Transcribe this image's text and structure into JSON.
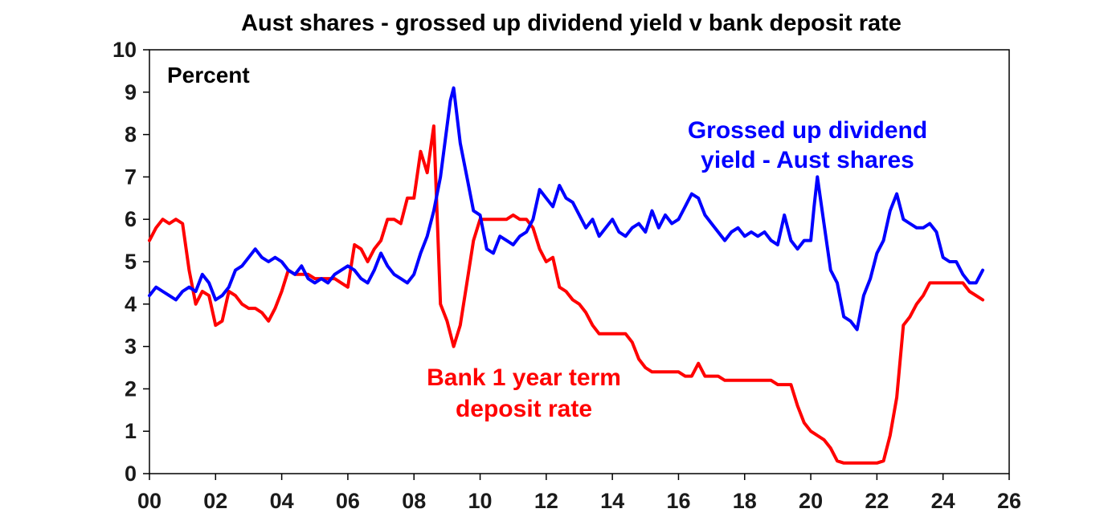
{
  "chart_data": {
    "type": "line",
    "title": "Aust shares - grossed up dividend yield v bank deposit rate",
    "unit_label": "Percent",
    "xlabel": "",
    "ylabel": "",
    "xlim": [
      0,
      26
    ],
    "ylim": [
      0,
      10
    ],
    "x_ticks": [
      0,
      2,
      4,
      6,
      8,
      10,
      12,
      14,
      16,
      18,
      20,
      22,
      24,
      26
    ],
    "x_tick_labels": [
      "00",
      "02",
      "04",
      "06",
      "08",
      "10",
      "12",
      "14",
      "16",
      "18",
      "20",
      "22",
      "24",
      "26"
    ],
    "y_ticks": [
      0,
      1,
      2,
      3,
      4,
      5,
      6,
      7,
      8,
      9,
      10
    ],
    "grid": false,
    "legend": "none",
    "series": [
      {
        "annotation_lines": [
          "Grossed up dividend",
          "yield - Aust shares"
        ],
        "color": "#0000ff",
        "x": [
          0.0,
          0.2,
          0.4,
          0.6,
          0.8,
          1.0,
          1.2,
          1.4,
          1.6,
          1.8,
          2.0,
          2.2,
          2.4,
          2.6,
          2.8,
          3.0,
          3.2,
          3.4,
          3.6,
          3.8,
          4.0,
          4.2,
          4.4,
          4.6,
          4.8,
          5.0,
          5.2,
          5.4,
          5.6,
          5.8,
          6.0,
          6.2,
          6.4,
          6.6,
          6.8,
          7.0,
          7.2,
          7.4,
          7.6,
          7.8,
          8.0,
          8.2,
          8.4,
          8.6,
          8.8,
          9.0,
          9.1,
          9.2,
          9.4,
          9.6,
          9.8,
          10.0,
          10.2,
          10.4,
          10.6,
          10.8,
          11.0,
          11.2,
          11.4,
          11.6,
          11.8,
          12.0,
          12.2,
          12.4,
          12.6,
          12.8,
          13.0,
          13.2,
          13.4,
          13.6,
          13.8,
          14.0,
          14.2,
          14.4,
          14.6,
          14.8,
          15.0,
          15.2,
          15.4,
          15.6,
          15.8,
          16.0,
          16.2,
          16.4,
          16.6,
          16.8,
          17.0,
          17.2,
          17.4,
          17.6,
          17.8,
          18.0,
          18.2,
          18.4,
          18.6,
          18.8,
          19.0,
          19.2,
          19.4,
          19.6,
          19.8,
          20.0,
          20.1,
          20.2,
          20.4,
          20.6,
          20.8,
          21.0,
          21.2,
          21.4,
          21.6,
          21.8,
          22.0,
          22.2,
          22.4,
          22.6,
          22.8,
          23.0,
          23.2,
          23.4,
          23.6,
          23.8,
          24.0,
          24.2,
          24.4,
          24.6,
          24.8,
          25.0,
          25.2
        ],
        "y": [
          4.2,
          4.4,
          4.3,
          4.2,
          4.1,
          4.3,
          4.4,
          4.3,
          4.7,
          4.5,
          4.1,
          4.2,
          4.4,
          4.8,
          4.9,
          5.1,
          5.3,
          5.1,
          5.0,
          5.1,
          5.0,
          4.8,
          4.7,
          4.9,
          4.6,
          4.5,
          4.6,
          4.5,
          4.7,
          4.8,
          4.9,
          4.8,
          4.6,
          4.5,
          4.8,
          5.2,
          4.9,
          4.7,
          4.6,
          4.5,
          4.7,
          5.2,
          5.6,
          6.2,
          7.0,
          8.2,
          8.8,
          9.1,
          7.8,
          7.0,
          6.2,
          6.1,
          5.3,
          5.2,
          5.6,
          5.5,
          5.4,
          5.6,
          5.7,
          6.0,
          6.7,
          6.5,
          6.3,
          6.8,
          6.5,
          6.4,
          6.1,
          5.8,
          6.0,
          5.6,
          5.8,
          6.0,
          5.7,
          5.6,
          5.8,
          5.9,
          5.7,
          6.2,
          5.8,
          6.1,
          5.9,
          6.0,
          6.3,
          6.6,
          6.5,
          6.1,
          5.9,
          5.7,
          5.5,
          5.7,
          5.8,
          5.6,
          5.7,
          5.6,
          5.7,
          5.5,
          5.4,
          6.1,
          5.5,
          5.3,
          5.5,
          5.5,
          6.3,
          7.0,
          5.9,
          4.8,
          4.5,
          3.7,
          3.6,
          3.4,
          4.2,
          4.6,
          5.2,
          5.5,
          6.2,
          6.6,
          6.0,
          5.9,
          5.8,
          5.8,
          5.9,
          5.7,
          5.1,
          5.0,
          5.0,
          4.7,
          4.5,
          4.5,
          4.8
        ]
      },
      {
        "annotation_lines": [
          "Bank 1 year term",
          "deposit rate"
        ],
        "color": "#ff0000",
        "x": [
          0.0,
          0.2,
          0.4,
          0.6,
          0.8,
          1.0,
          1.2,
          1.4,
          1.6,
          1.8,
          2.0,
          2.2,
          2.4,
          2.6,
          2.8,
          3.0,
          3.2,
          3.4,
          3.6,
          3.8,
          4.0,
          4.2,
          4.4,
          4.6,
          4.8,
          5.0,
          5.2,
          5.4,
          5.6,
          5.8,
          6.0,
          6.2,
          6.4,
          6.6,
          6.8,
          7.0,
          7.2,
          7.4,
          7.6,
          7.8,
          8.0,
          8.2,
          8.4,
          8.6,
          8.8,
          9.0,
          9.2,
          9.4,
          9.6,
          9.8,
          10.0,
          10.2,
          10.4,
          10.6,
          10.8,
          11.0,
          11.2,
          11.4,
          11.6,
          11.8,
          12.0,
          12.2,
          12.4,
          12.6,
          12.8,
          13.0,
          13.2,
          13.4,
          13.6,
          13.8,
          14.0,
          14.2,
          14.4,
          14.6,
          14.8,
          15.0,
          15.2,
          15.4,
          15.6,
          15.8,
          16.0,
          16.2,
          16.4,
          16.6,
          16.8,
          17.0,
          17.2,
          17.4,
          17.6,
          17.8,
          18.0,
          18.2,
          18.4,
          18.6,
          18.8,
          19.0,
          19.2,
          19.4,
          19.6,
          19.8,
          20.0,
          20.2,
          20.4,
          20.6,
          20.8,
          21.0,
          21.2,
          21.4,
          21.6,
          21.8,
          22.0,
          22.2,
          22.4,
          22.6,
          22.8,
          23.0,
          23.2,
          23.4,
          23.6,
          23.8,
          24.0,
          24.2,
          24.4,
          24.6,
          24.8,
          25.0,
          25.2
        ],
        "y": [
          5.5,
          5.8,
          6.0,
          5.9,
          6.0,
          5.9,
          4.8,
          4.0,
          4.3,
          4.2,
          3.5,
          3.6,
          4.3,
          4.2,
          4.0,
          3.9,
          3.9,
          3.8,
          3.6,
          3.9,
          4.3,
          4.8,
          4.7,
          4.7,
          4.7,
          4.6,
          4.6,
          4.6,
          4.6,
          4.5,
          4.4,
          5.4,
          5.3,
          5.0,
          5.3,
          5.5,
          6.0,
          6.0,
          5.9,
          6.5,
          6.5,
          7.6,
          7.1,
          8.2,
          4.0,
          3.6,
          3.0,
          3.5,
          4.5,
          5.5,
          6.0,
          6.0,
          6.0,
          6.0,
          6.0,
          6.1,
          6.0,
          6.0,
          5.8,
          5.3,
          5.0,
          5.1,
          4.4,
          4.3,
          4.1,
          4.0,
          3.8,
          3.5,
          3.3,
          3.3,
          3.3,
          3.3,
          3.3,
          3.1,
          2.7,
          2.5,
          2.4,
          2.4,
          2.4,
          2.4,
          2.4,
          2.3,
          2.3,
          2.6,
          2.3,
          2.3,
          2.3,
          2.2,
          2.2,
          2.2,
          2.2,
          2.2,
          2.2,
          2.2,
          2.2,
          2.1,
          2.1,
          2.1,
          1.6,
          1.2,
          1.0,
          0.9,
          0.8,
          0.6,
          0.3,
          0.25,
          0.25,
          0.25,
          0.25,
          0.25,
          0.25,
          0.3,
          0.9,
          1.8,
          3.5,
          3.7,
          4.0,
          4.2,
          4.5,
          4.5,
          4.5,
          4.5,
          4.5,
          4.5,
          4.3,
          4.2,
          4.1
        ]
      }
    ]
  }
}
